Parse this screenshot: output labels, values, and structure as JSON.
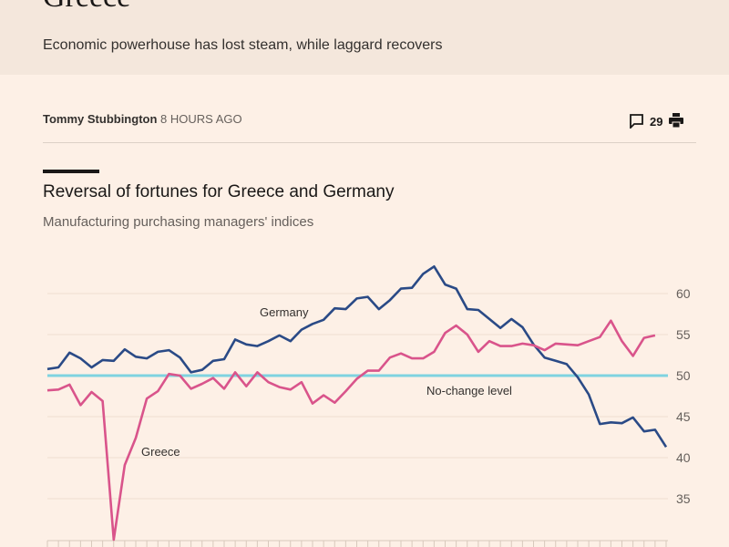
{
  "article": {
    "headline": "Greece",
    "standfirst": "Economic powerhouse has lost steam, while laggard recovers",
    "author": "Tommy Stubbington",
    "time": "8 HOURS AGO",
    "comment_count": "29",
    "icons": [
      "comment-icon",
      "print-icon"
    ]
  },
  "chart_data": {
    "type": "line",
    "title": "Reversal of fortunes for Greece and Germany",
    "subtitle": "Manufacturing purchasing managers' indices",
    "ylim": [
      30,
      64
    ],
    "yticks": [
      35,
      40,
      45,
      50,
      55,
      60
    ],
    "grid": true,
    "reference_line": {
      "value": 50,
      "label": "No-change level",
      "color": "#7fd3e0"
    },
    "series": [
      {
        "name": "Germany",
        "color": "#2a4a86",
        "values": [
          50.8,
          51.0,
          52.8,
          52.1,
          51.0,
          51.9,
          51.8,
          53.2,
          52.3,
          52.1,
          52.9,
          53.1,
          52.2,
          50.4,
          50.7,
          51.8,
          52.0,
          54.4,
          53.8,
          53.6,
          54.2,
          54.9,
          54.2,
          55.6,
          56.3,
          56.8,
          58.2,
          58.1,
          59.4,
          59.6,
          58.1,
          59.2,
          60.6,
          60.7,
          62.4,
          63.3,
          61.1,
          60.6,
          58.1,
          58.0,
          56.9,
          55.8,
          56.9,
          55.9,
          53.8,
          52.2,
          51.8,
          51.4,
          49.8,
          47.7,
          44.1,
          44.3,
          44.2,
          44.9,
          43.2,
          43.4,
          41.3
        ]
      },
      {
        "name": "Greece",
        "color": "#d9548b",
        "values": [
          48.2,
          48.3,
          48.9,
          46.4,
          48.0,
          46.9,
          30.0,
          39.1,
          42.4,
          47.2,
          48.1,
          50.2,
          50.0,
          48.4,
          49.0,
          49.7,
          48.4,
          50.4,
          48.7,
          50.4,
          49.2,
          48.6,
          48.3,
          49.2,
          46.6,
          47.6,
          46.7,
          48.1,
          49.6,
          50.6,
          50.6,
          52.2,
          52.7,
          52.1,
          52.1,
          52.9,
          55.2,
          56.1,
          55.0,
          52.9,
          54.2,
          53.6,
          53.6,
          53.9,
          53.7,
          53.1,
          53.9,
          53.8,
          53.7,
          54.2,
          54.7,
          56.7,
          54.2,
          52.4,
          54.6,
          54.9
        ]
      }
    ]
  }
}
